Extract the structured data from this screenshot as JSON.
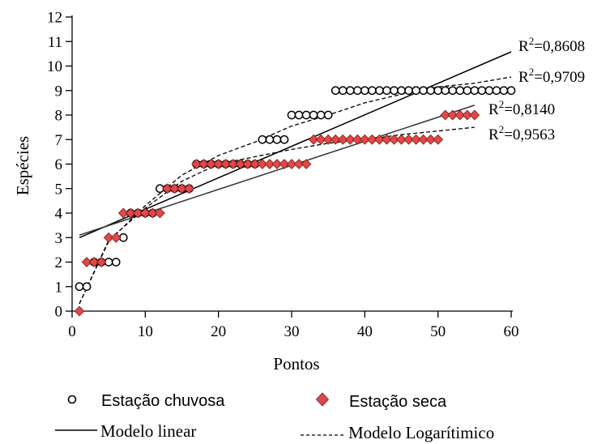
{
  "chart_data": {
    "type": "scatter",
    "xlabel": "Pontos",
    "ylabel": "Espécies",
    "xlim": [
      0,
      60
    ],
    "ylim": [
      0,
      12
    ],
    "xticks": [
      0,
      10,
      20,
      30,
      40,
      50,
      60
    ],
    "yticks": [
      0,
      1,
      2,
      3,
      4,
      5,
      6,
      7,
      8,
      9,
      10,
      11,
      12
    ],
    "xtick_labels": [
      "0",
      "10",
      "20",
      "30",
      "40",
      "50",
      "60"
    ],
    "ytick_labels": [
      "0",
      "1",
      "2",
      "3",
      "4",
      "5",
      "6",
      "7",
      "8",
      "9",
      "10",
      "11",
      "12"
    ],
    "grid": false,
    "legend_position": "bottom",
    "series": [
      {
        "name": "Estação chuvosa",
        "marker": "open-circle",
        "color": "#000000",
        "x": [
          1,
          2,
          3,
          4,
          5,
          6,
          7,
          8,
          9,
          10,
          11,
          12,
          13,
          14,
          15,
          16,
          17,
          18,
          19,
          20,
          21,
          22,
          23,
          24,
          25,
          26,
          27,
          28,
          29,
          30,
          31,
          32,
          33,
          34,
          35,
          36,
          37,
          38,
          39,
          40,
          41,
          42,
          43,
          44,
          45,
          46,
          47,
          48,
          49,
          50,
          51,
          52,
          53,
          54,
          55,
          56,
          57,
          58,
          59,
          60
        ],
        "y": [
          1,
          1,
          2,
          2,
          2,
          2,
          3,
          4,
          4,
          4,
          4,
          5,
          5,
          5,
          5,
          5,
          6,
          6,
          6,
          6,
          6,
          6,
          6,
          6,
          6,
          7,
          7,
          7,
          7,
          8,
          8,
          8,
          8,
          8,
          8,
          9,
          9,
          9,
          9,
          9,
          9,
          9,
          9,
          9,
          9,
          9,
          9,
          9,
          9,
          9,
          9,
          9,
          9,
          9,
          9,
          9,
          9,
          9,
          9,
          9
        ]
      },
      {
        "name": "Estação seca",
        "marker": "diamond",
        "color": "#e04848",
        "x": [
          1,
          2,
          3,
          4,
          5,
          6,
          7,
          8,
          9,
          10,
          11,
          12,
          13,
          14,
          15,
          16,
          17,
          18,
          19,
          20,
          21,
          22,
          23,
          24,
          25,
          26,
          27,
          28,
          29,
          30,
          31,
          32,
          33,
          34,
          35,
          36,
          37,
          38,
          39,
          40,
          41,
          42,
          43,
          44,
          45,
          46,
          47,
          48,
          49,
          50,
          51,
          52,
          53,
          54,
          55
        ],
        "y": [
          0,
          2,
          2,
          2,
          3,
          3,
          4,
          4,
          4,
          4,
          4,
          4,
          5,
          5,
          5,
          5,
          6,
          6,
          6,
          6,
          6,
          6,
          6,
          6,
          6,
          6,
          6,
          6,
          6,
          6,
          6,
          6,
          7,
          7,
          7,
          7,
          7,
          7,
          7,
          7,
          7,
          7,
          7,
          7,
          7,
          7,
          7,
          7,
          7,
          7,
          8,
          8,
          8,
          8,
          8
        ]
      },
      {
        "name": "Modelo linear",
        "kind": "fit-line",
        "style": "solid",
        "fits": [
          {
            "x": [
              1,
              60
            ],
            "y": [
              3.0,
              10.58
            ],
            "label": "R2=0,8608"
          },
          {
            "x": [
              1,
              55
            ],
            "y": [
              3.1,
              8.4
            ],
            "label": "R2=0,8140"
          }
        ]
      },
      {
        "name": "Modelo Logarítimico",
        "kind": "fit-curve",
        "style": "dashed",
        "fits": [
          {
            "x": [
              1,
              5,
              10,
              15,
              20,
              25,
              30,
              35,
              40,
              45,
              50,
              55,
              60
            ],
            "y": [
              0.3,
              2.85,
              4.3,
              5.55,
              6.35,
              6.9,
              7.55,
              8.0,
              8.5,
              8.85,
              9.15,
              9.3,
              9.55
            ],
            "label": "R2=0,9709"
          },
          {
            "x": [
              1,
              5,
              10,
              15,
              20,
              25,
              30,
              35,
              40,
              45,
              50,
              55
            ],
            "y": [
              0.3,
              2.9,
              4.2,
              5.3,
              6.0,
              6.3,
              6.6,
              6.85,
              7.0,
              7.2,
              7.35,
              7.5
            ],
            "label": "R2=0,9563"
          }
        ]
      }
    ],
    "annotations": [
      {
        "text": "R2=0,8608",
        "base": "R",
        "sup": "2",
        "rest": "=0,8608"
      },
      {
        "text": "R2=0,9709",
        "base": "R",
        "sup": "2",
        "rest": "=0,9709"
      },
      {
        "text": "R2=0,8140",
        "base": "R",
        "sup": "2",
        "rest": "=0,8140"
      },
      {
        "text": "R2=0,9563",
        "base": "R",
        "sup": "2",
        "rest": "=0,9563"
      }
    ]
  },
  "legend": {
    "rain_label": "Estação chuvosa",
    "dry_label": "Estação seca",
    "linear_label": "Modelo linear",
    "log_label": "Modelo Logarítimico"
  }
}
